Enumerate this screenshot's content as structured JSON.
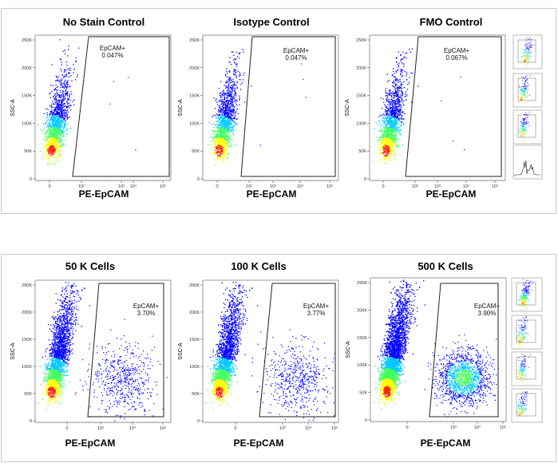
{
  "chart_data": [
    {
      "type": "scatter",
      "title": "No Stain Control",
      "xlabel": "PE-EpCAM",
      "ylabel": "SSC-A",
      "x_ticks": [
        "0",
        "10²",
        "10³",
        "10⁴",
        "10⁵"
      ],
      "y_ticks": [
        "0",
        "50K",
        "100K",
        "150K",
        "200K",
        "250K"
      ],
      "ylim": [
        0,
        260000
      ],
      "gate": {
        "name": "EpCAM+",
        "percent": "0.047%"
      }
    },
    {
      "type": "scatter",
      "title": "Isotype Control",
      "xlabel": "PE-EpCAM",
      "ylabel": "SSC-A",
      "x_ticks": [
        "0",
        "10²",
        "10³",
        "10⁴",
        "10⁵"
      ],
      "y_ticks": [
        "0",
        "50K",
        "100K",
        "150K",
        "200K",
        "250K"
      ],
      "ylim": [
        0,
        260000
      ],
      "gate": {
        "name": "EpCAM+",
        "percent": "0.047%"
      }
    },
    {
      "type": "scatter",
      "title": "FMO Control",
      "xlabel": "PE-EpCAM",
      "ylabel": "SSC-A",
      "x_ticks": [
        "0",
        "10²",
        "10³",
        "10⁴",
        "10⁵"
      ],
      "y_ticks": [
        "0",
        "50K",
        "100K",
        "150K",
        "200K",
        "250K"
      ],
      "ylim": [
        0,
        260000
      ],
      "gate": {
        "name": "EpCAM+",
        "percent": "0.067%"
      }
    },
    {
      "type": "scatter",
      "title": "50 K Cells",
      "xlabel": "PE-EpCAM",
      "ylabel": "SSC-A",
      "x_ticks": [
        "0",
        "10³",
        "10⁴",
        "10⁵"
      ],
      "y_ticks": [
        "0",
        "50K",
        "100K",
        "150K",
        "200K",
        "250K"
      ],
      "ylim": [
        0,
        260000
      ],
      "gate": {
        "name": "EpCAM+",
        "percent": "3.70%"
      }
    },
    {
      "type": "scatter",
      "title": "100 K Cells",
      "xlabel": "PE-EpCAM",
      "ylabel": "SSC-A",
      "x_ticks": [
        "0",
        "10³",
        "10⁴",
        "10⁵"
      ],
      "y_ticks": [
        "0",
        "50K",
        "100K",
        "150K",
        "200K",
        "250K"
      ],
      "ylim": [
        0,
        260000
      ],
      "gate": {
        "name": "EpCAM+",
        "percent": "3.77%"
      }
    },
    {
      "type": "scatter",
      "title": "500 K Cells",
      "xlabel": "PE-EpCAM",
      "ylabel": "SSC-A",
      "x_ticks": [
        "0",
        "10³",
        "10⁴",
        "10⁵"
      ],
      "y_ticks": [
        "0",
        "50K",
        "100K",
        "150K",
        "200K",
        "250K"
      ],
      "ylim": [
        0,
        260000
      ],
      "gate": {
        "name": "EpCAM+",
        "percent": "3.90%"
      }
    }
  ],
  "colors": {
    "low": "#0000ff",
    "mid": "#00c8ff",
    "midhigh": "#40ff60",
    "high": "#ffff00",
    "peak": "#ff2000"
  }
}
